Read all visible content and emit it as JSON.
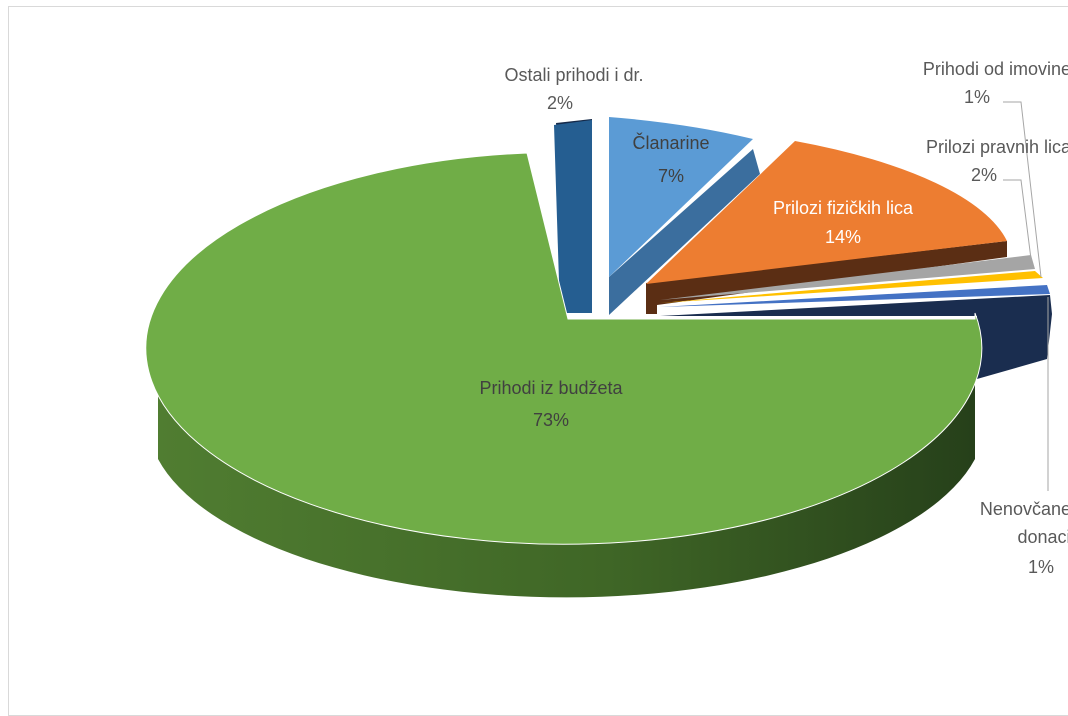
{
  "chart_data": {
    "type": "pie",
    "style": "3d-exploded",
    "slices": [
      {
        "label": "Članarine",
        "value": 7,
        "pct": "7%",
        "color": "#5b9bd5"
      },
      {
        "label": "Prilozi fizičkih lica",
        "value": 14,
        "pct": "14%",
        "color": "#ed7d31"
      },
      {
        "label": "Prilozi pravnih lica",
        "value": 2,
        "pct": "2%",
        "color": "#a5a5a5"
      },
      {
        "label": "Prihodi od imovine",
        "value": 1,
        "pct": "1%",
        "color": "#ffc000"
      },
      {
        "label": "Nenovčane donacije",
        "label_lines": [
          "Nenovčane",
          "donacije"
        ],
        "value": 1,
        "pct": "1%",
        "color": "#4472c4"
      },
      {
        "label": "Prihodi iz budžeta",
        "value": 73,
        "pct": "73%",
        "color": "#70ad47"
      },
      {
        "label": "Ostali prihodi i dr.",
        "value": 2,
        "pct": "2%",
        "color": "#255e91"
      }
    ],
    "side_colors": {
      "Članarine": "#3b6e9e",
      "Prilozi fizičkih lica": "#5b2e14",
      "Nenovčane donacije": "#1a2d4f",
      "Ostali prihodi i dr.": "#152a4a"
    },
    "legend": "none",
    "data_labels": "category-name and percentage"
  }
}
